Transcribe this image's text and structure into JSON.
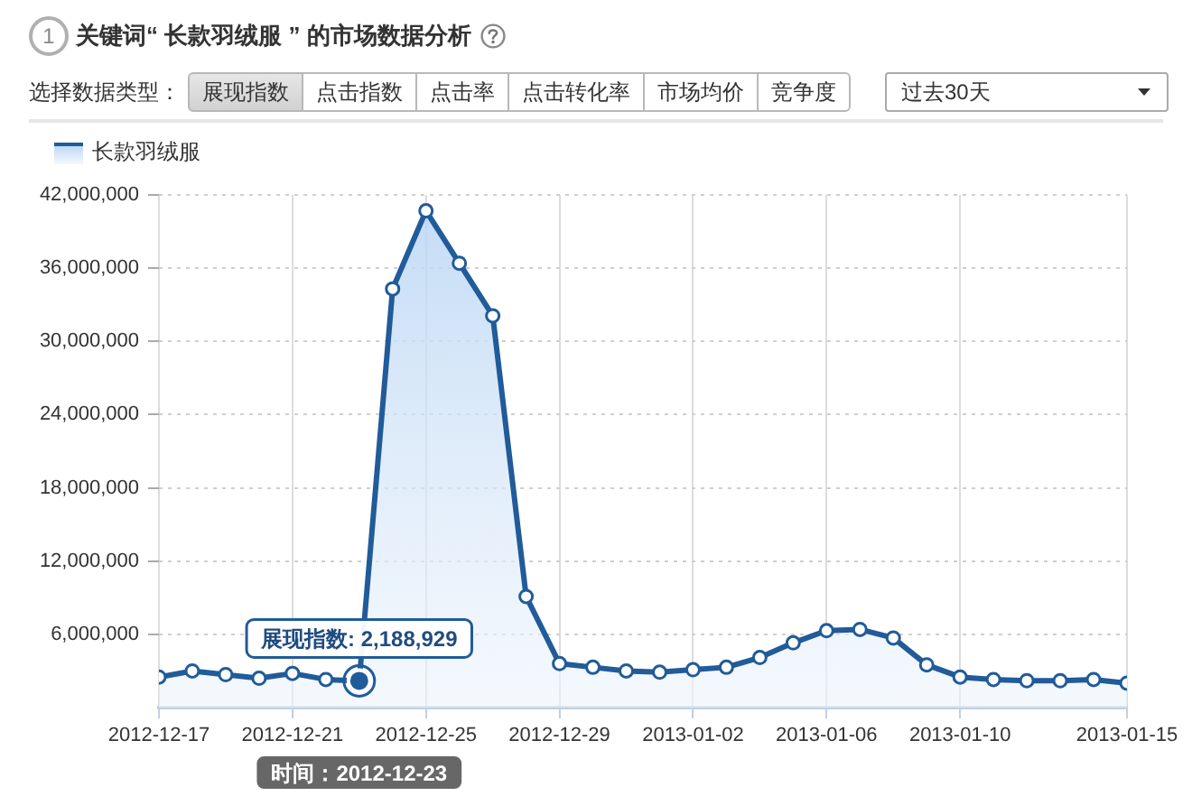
{
  "chart_data": {
    "type": "area",
    "title": "关键词“ 长款羽绒服 ” 的市场数据分析",
    "x": [
      "2012-12-17",
      "2012-12-18",
      "2012-12-19",
      "2012-12-20",
      "2012-12-21",
      "2012-12-22",
      "2012-12-23",
      "2012-12-24",
      "2012-12-25",
      "2012-12-26",
      "2012-12-27",
      "2012-12-28",
      "2012-12-29",
      "2012-12-30",
      "2012-12-31",
      "2013-01-01",
      "2013-01-02",
      "2013-01-03",
      "2013-01-04",
      "2013-01-05",
      "2013-01-06",
      "2013-01-07",
      "2013-01-08",
      "2013-01-09",
      "2013-01-10",
      "2013-01-11",
      "2013-01-12",
      "2013-01-13",
      "2013-01-14",
      "2013-01-15"
    ],
    "series": [
      {
        "name": "长款羽绒服",
        "color": "#215b99",
        "values": [
          2500000,
          3000000,
          2700000,
          2400000,
          2800000,
          2300000,
          2188929,
          34300000,
          40700000,
          36400000,
          32100000,
          9100000,
          3600000,
          3300000,
          3000000,
          2900000,
          3100000,
          3300000,
          4100000,
          5300000,
          6300000,
          6400000,
          5700000,
          3500000,
          2500000,
          2300000,
          2200000,
          2200000,
          2300000,
          2000000
        ]
      }
    ],
    "xlim": [
      "2012-12-17",
      "2013-01-15"
    ],
    "xticks": [
      "2012-12-17",
      "2012-12-21",
      "2012-12-25",
      "2012-12-29",
      "2013-01-02",
      "2013-01-06",
      "2013-01-10",
      "2013-01-15"
    ],
    "ylim": [
      0,
      42000000
    ],
    "yticks": [
      {
        "value": 6000000,
        "label": "6,000,000"
      },
      {
        "value": 12000000,
        "label": "12,000,000"
      },
      {
        "value": 18000000,
        "label": "18,000,000"
      },
      {
        "value": 24000000,
        "label": "24,000,000"
      },
      {
        "value": 30000000,
        "label": "30,000,000"
      },
      {
        "value": 36000000,
        "label": "36,000,000"
      },
      {
        "value": 42000000,
        "label": "42,000,000"
      }
    ],
    "grid": true,
    "legend": "top left",
    "marker": "circle",
    "line_style": "solid",
    "annotations": [
      "1",
      "选择数据类型：",
      "展现指数",
      "点击指数",
      "点击率",
      "点击转化率",
      "市场均价",
      "竞争度",
      "过去30天",
      "时间：2012-12-23",
      {
        "text": "展现指数: 2,188,929",
        "x": "2012-12-23",
        "y": 2188929
      }
    ]
  }
}
